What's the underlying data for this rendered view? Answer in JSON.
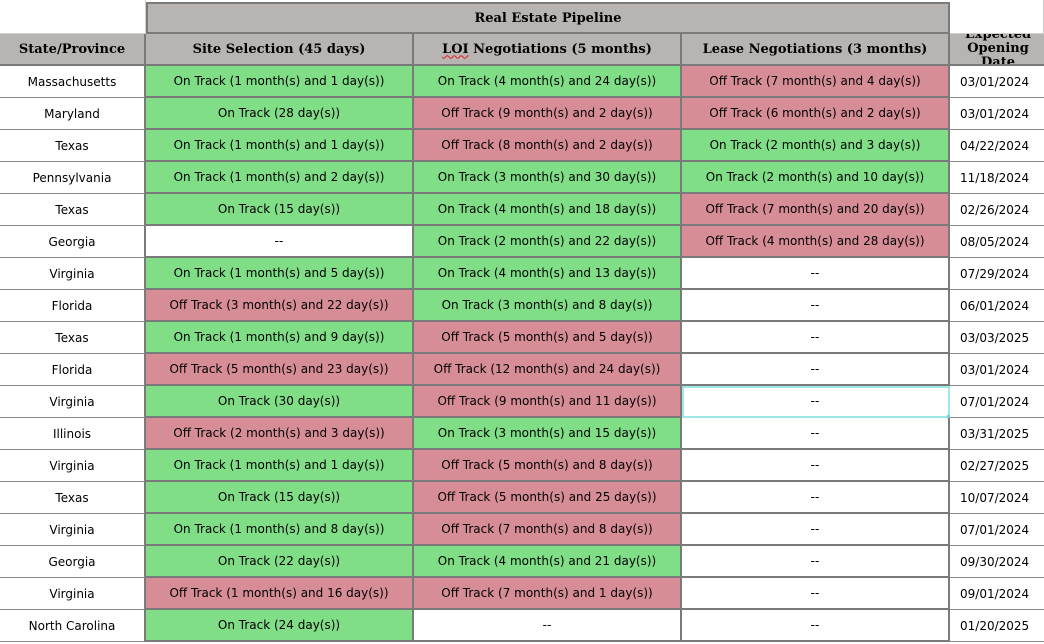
{
  "sheet": {
    "banner": "Real Estate Pipeline",
    "columns": {
      "state": "State/Province",
      "site": "Site Selection (45 days)",
      "loi_abbr": "LOI",
      "loi_rest": " Negotiations (5 months)",
      "lease": "Lease Negotiations (3 months)",
      "opening": "Expected Opening Date"
    },
    "rows": [
      {
        "state": "Massachusetts",
        "site": "On Track (1 month(s) and 1 day(s))",
        "site_status": "on",
        "loi": "On Track (4 month(s) and 24 day(s))",
        "loi_status": "on",
        "lease": "Off Track (7 month(s) and 4 day(s))",
        "lease_status": "off",
        "opening": "03/01/2024"
      },
      {
        "state": "Maryland",
        "site": "On Track (28 day(s))",
        "site_status": "on",
        "loi": "Off Track (9 month(s) and 2 day(s))",
        "loi_status": "off",
        "lease": "Off Track (6 month(s) and 2 day(s))",
        "lease_status": "off",
        "opening": "03/01/2024"
      },
      {
        "state": "Texas",
        "site": "On Track (1 month(s) and 1 day(s))",
        "site_status": "on",
        "loi": "Off Track (8 month(s) and 2 day(s))",
        "loi_status": "off",
        "lease": "On Track (2 month(s) and 3 day(s))",
        "lease_status": "on",
        "opening": "04/22/2024"
      },
      {
        "state": "Pennsylvania",
        "site": "On Track (1 month(s) and 2 day(s))",
        "site_status": "on",
        "loi": "On Track (3 month(s) and 30 day(s))",
        "loi_status": "on",
        "lease": "On Track (2 month(s) and 10 day(s))",
        "lease_status": "on",
        "opening": "11/18/2024"
      },
      {
        "state": "Texas",
        "site": "On Track (15 day(s))",
        "site_status": "on",
        "loi": "On Track (4 month(s) and 18 day(s))",
        "loi_status": "on",
        "lease": "Off Track (7 month(s) and 20 day(s))",
        "lease_status": "off",
        "opening": "02/26/2024"
      },
      {
        "state": "Georgia",
        "site": "--",
        "site_status": "none",
        "loi": "On Track (2 month(s) and 22 day(s))",
        "loi_status": "on",
        "lease": "Off Track (4 month(s) and 28 day(s))",
        "lease_status": "off",
        "opening": "08/05/2024"
      },
      {
        "state": "Virginia",
        "site": "On Track (1 month(s) and 5 day(s))",
        "site_status": "on",
        "loi": "On Track (4 month(s) and 13 day(s))",
        "loi_status": "on",
        "lease": "--",
        "lease_status": "none",
        "opening": "07/29/2024"
      },
      {
        "state": "Florida",
        "site": "Off Track (3 month(s) and 22 day(s))",
        "site_status": "off",
        "loi": "On Track (3 month(s) and 8 day(s))",
        "loi_status": "on",
        "lease": "--",
        "lease_status": "none",
        "opening": "06/01/2024"
      },
      {
        "state": "Texas",
        "site": "On Track (1 month(s) and 9 day(s))",
        "site_status": "on",
        "loi": "Off Track (5 month(s) and 5 day(s))",
        "loi_status": "off",
        "lease": "--",
        "lease_status": "none",
        "opening": "03/03/2025"
      },
      {
        "state": "Florida",
        "site": "Off Track (5 month(s) and 23 day(s))",
        "site_status": "off",
        "loi": "Off Track (12 month(s) and 24 day(s))",
        "loi_status": "off",
        "lease": "--",
        "lease_status": "none",
        "opening": "03/01/2024"
      },
      {
        "state": "Virginia",
        "site": "On Track (30 day(s))",
        "site_status": "on",
        "loi": "Off Track (9 month(s) and 11 day(s))",
        "loi_status": "off",
        "lease": "--",
        "lease_status": "none",
        "opening": "07/01/2024"
      },
      {
        "state": "Illinois",
        "site": "Off Track (2 month(s) and 3 day(s))",
        "site_status": "off",
        "loi": "On Track (3 month(s) and 15 day(s))",
        "loi_status": "on",
        "lease": "--",
        "lease_status": "none",
        "opening": "03/31/2025"
      },
      {
        "state": "Virginia",
        "site": "On Track (1 month(s) and 1 day(s))",
        "site_status": "on",
        "loi": "Off Track (5 month(s) and 8 day(s))",
        "loi_status": "off",
        "lease": "--",
        "lease_status": "none",
        "opening": "02/27/2025"
      },
      {
        "state": "Texas",
        "site": "On Track (15 day(s))",
        "site_status": "on",
        "loi": "Off Track (5 month(s) and 25 day(s))",
        "loi_status": "off",
        "lease": "--",
        "lease_status": "none",
        "opening": "10/07/2024"
      },
      {
        "state": "Virginia",
        "site": "On Track (1 month(s) and 8 day(s))",
        "site_status": "on",
        "loi": "Off Track (7 month(s) and 8 day(s))",
        "loi_status": "off",
        "lease": "--",
        "lease_status": "none",
        "opening": "07/01/2024"
      },
      {
        "state": "Georgia",
        "site": "On Track (22 day(s))",
        "site_status": "on",
        "loi": "On Track (4 month(s) and 21 day(s))",
        "loi_status": "on",
        "lease": "--",
        "lease_status": "none",
        "opening": "09/30/2024"
      },
      {
        "state": "Virginia",
        "site": "Off Track (1 month(s) and 16 day(s))",
        "site_status": "off",
        "loi": "Off Track (7 month(s) and 1 day(s))",
        "loi_status": "off",
        "lease": "--",
        "lease_status": "none",
        "opening": "09/01/2024"
      },
      {
        "state": "North Carolina",
        "site": "On Track (24 day(s))",
        "site_status": "on",
        "loi": "--",
        "loi_status": "none",
        "lease": "--",
        "lease_status": "none",
        "opening": "01/20/2025"
      }
    ],
    "selected": {
      "row": 10,
      "col": "lease"
    },
    "colors": {
      "on_track": "#7fde86",
      "off_track": "#d78d96",
      "header": "#b7b4b1"
    }
  }
}
